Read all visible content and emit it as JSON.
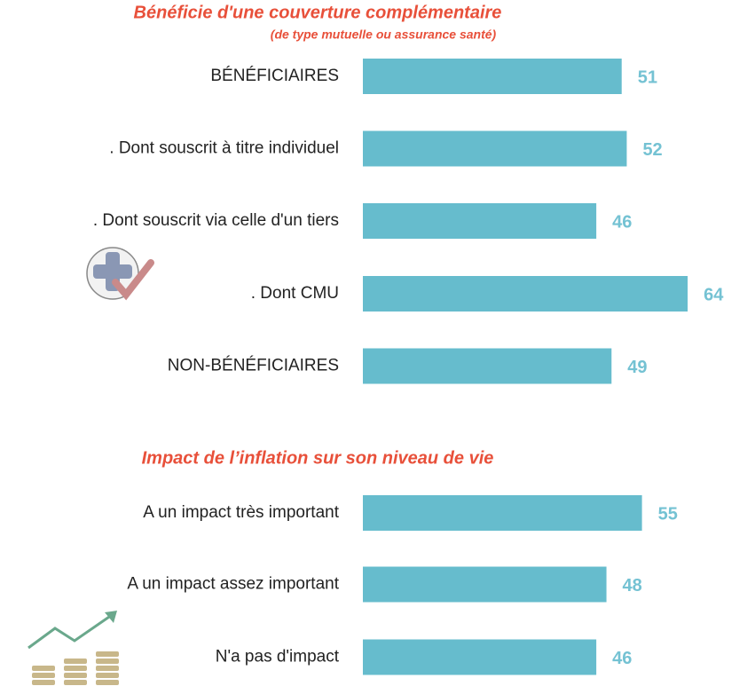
{
  "chart_data": [
    {
      "type": "bar",
      "title": "Bénéficie d'une couverture complémentaire",
      "subtitle": "(de type mutuelle ou assurance santé)",
      "categories": [
        "BÉNÉFICIAIRES",
        ". Dont souscrit à titre individuel",
        ". Dont souscrit via celle d'un tiers",
        ". Dont CMU",
        "NON-BÉNÉFICIAIRES"
      ],
      "values": [
        51,
        52,
        46,
        64,
        49
      ],
      "color": "#66bccd"
    },
    {
      "type": "bar",
      "title": "Impact de l’inflation sur son niveau de vie",
      "categories": [
        "A un impact très important",
        "A un impact assez important",
        "N'a pas d'impact"
      ],
      "values": [
        55,
        48,
        46
      ],
      "color": "#66bccd"
    }
  ]
}
